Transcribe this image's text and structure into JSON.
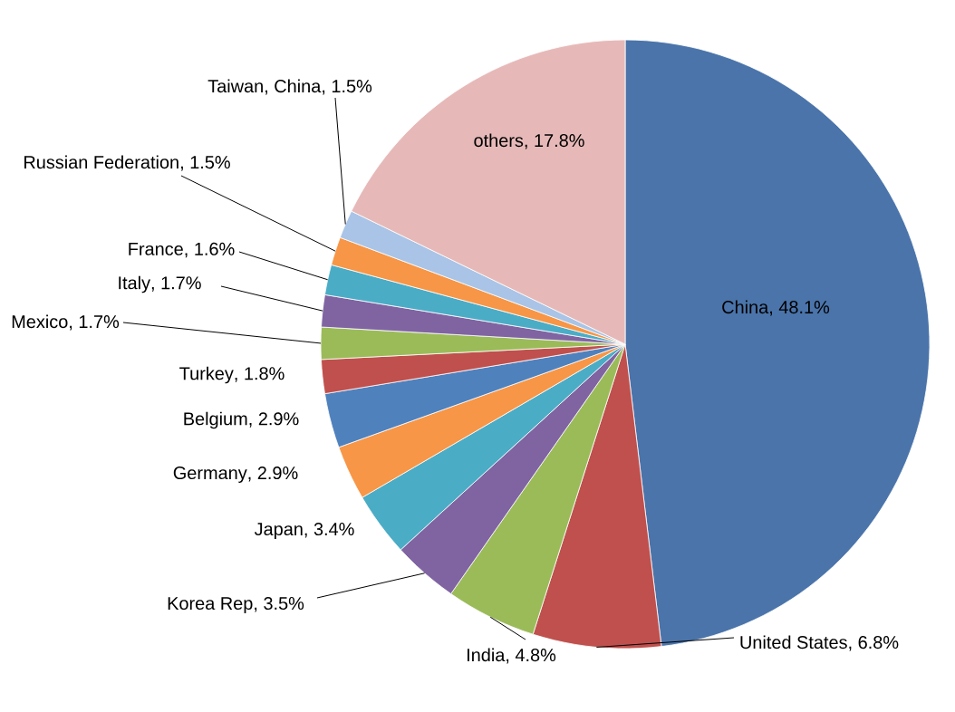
{
  "chart_data": {
    "type": "pie",
    "categories": [
      "China",
      "United States",
      "India",
      "Korea Rep",
      "Japan",
      "Germany",
      "Belgium",
      "Turkey",
      "Mexico",
      "Italy",
      "France",
      "Russian Federation",
      "Taiwan, China",
      "others"
    ],
    "values": [
      48.1,
      6.8,
      4.8,
      3.5,
      3.4,
      2.9,
      2.9,
      1.8,
      1.7,
      1.7,
      1.6,
      1.5,
      1.5,
      17.8
    ],
    "value_labels": [
      ", 48.1%",
      ", 6.8%",
      ", 4.8%",
      ", 3.5%",
      ", 3.4%",
      ", 2.9%",
      ", 2.9%",
      ", 1.8%",
      ", 1.7%",
      ", 1.7%",
      ", 1.6%",
      ", 1.5%",
      ", 1.5%",
      ", 17.8%"
    ],
    "colors": [
      "#4a74aa",
      "#bf504d",
      "#9bbb59",
      "#8064a2",
      "#4bacc6",
      "#f79646",
      "#4f81bd",
      "#c0504d",
      "#9bbb59",
      "#8064a2",
      "#4bacc6",
      "#f79646",
      "#a9c4e6",
      "#e6b9b8"
    ]
  }
}
